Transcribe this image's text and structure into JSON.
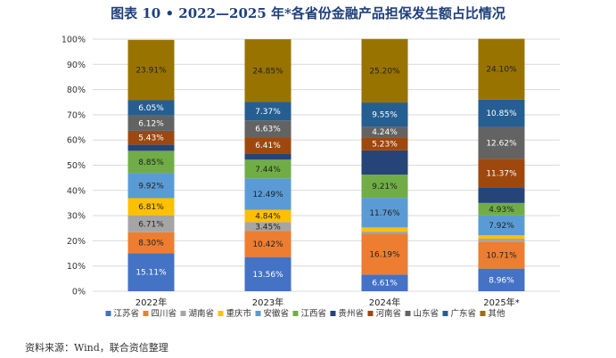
{
  "chart_data": {
    "type": "bar",
    "stacked": true,
    "title": "图表 10 • 2022—2025 年*各省份金融产品担保发生额占比情况",
    "categories": [
      "2022年",
      "2023年",
      "2024年",
      "2025年*"
    ],
    "ylim": [
      0,
      100
    ],
    "yticks": [
      "0%",
      "10%",
      "20%",
      "30%",
      "40%",
      "50%",
      "60%",
      "70%",
      "80%",
      "90%",
      "100%"
    ],
    "grid": true,
    "legend_position": "bottom",
    "series": [
      {
        "name": "江苏省",
        "color": "#4472c4",
        "values": [
          15.11,
          13.56,
          6.61,
          8.96
        ],
        "labels": [
          "15.11%",
          "13.56%",
          "6.61%",
          "8.96%"
        ],
        "label_color": "#ffffff"
      },
      {
        "name": "四川省",
        "color": "#ed7d31",
        "values": [
          8.3,
          10.42,
          16.19,
          10.71
        ],
        "labels": [
          "8.30%",
          "10.42%",
          "16.19%",
          "10.71%"
        ],
        "label_color": "#222222"
      },
      {
        "name": "湖南省",
        "color": "#a5a5a5",
        "values": [
          6.71,
          3.45,
          0.9,
          1.2
        ],
        "labels": [
          "6.71%",
          "3.45%",
          "",
          ""
        ],
        "label_color": "#222222"
      },
      {
        "name": "重庆市",
        "color": "#ffc000",
        "values": [
          6.81,
          4.84,
          1.6,
          1.3
        ],
        "labels": [
          "6.81%",
          "4.84%",
          "",
          ""
        ],
        "label_color": "#222222"
      },
      {
        "name": "安徽省",
        "color": "#5b9bd5",
        "values": [
          9.92,
          12.49,
          11.76,
          7.92
        ],
        "labels": [
          "9.92%",
          "12.49%",
          "11.76%",
          "7.92%"
        ],
        "label_color": "#222222"
      },
      {
        "name": "江西省",
        "color": "#70ad47",
        "values": [
          8.85,
          7.44,
          9.21,
          4.93
        ],
        "labels": [
          "8.85%",
          "7.44%",
          "9.21%",
          "4.93%"
        ],
        "label_color": "#222222"
      },
      {
        "name": "贵州省",
        "color": "#264478",
        "values": [
          2.5,
          2.5,
          9.6,
          6.2
        ],
        "labels": [
          "",
          "",
          "",
          ""
        ],
        "label_color": "#ffffff"
      },
      {
        "name": "河南省",
        "color": "#9e480e",
        "values": [
          5.43,
          6.41,
          5.23,
          11.37
        ],
        "labels": [
          "5.43%",
          "6.41%",
          "5.23%",
          "11.37%"
        ],
        "label_color": "#ffffff"
      },
      {
        "name": "山东省",
        "color": "#636363",
        "values": [
          6.12,
          6.63,
          4.24,
          12.62
        ],
        "labels": [
          "6.12%",
          "6.63%",
          "4.24%",
          "12.62%"
        ],
        "label_color": "#ffffff"
      },
      {
        "name": "广东省",
        "color": "#255e91",
        "values": [
          6.05,
          7.37,
          9.55,
          10.85
        ],
        "labels": [
          "6.05%",
          "7.37%",
          "9.55%",
          "10.85%"
        ],
        "label_color": "#ffffff"
      },
      {
        "name": "其他",
        "color": "#997300",
        "values": [
          23.91,
          24.85,
          25.2,
          24.1
        ],
        "labels": [
          "23.91%",
          "24.85%",
          "25.20%",
          "24.10%"
        ],
        "label_color": "#222222"
      }
    ]
  },
  "source_note": "资料来源：Wind，联合资信整理"
}
